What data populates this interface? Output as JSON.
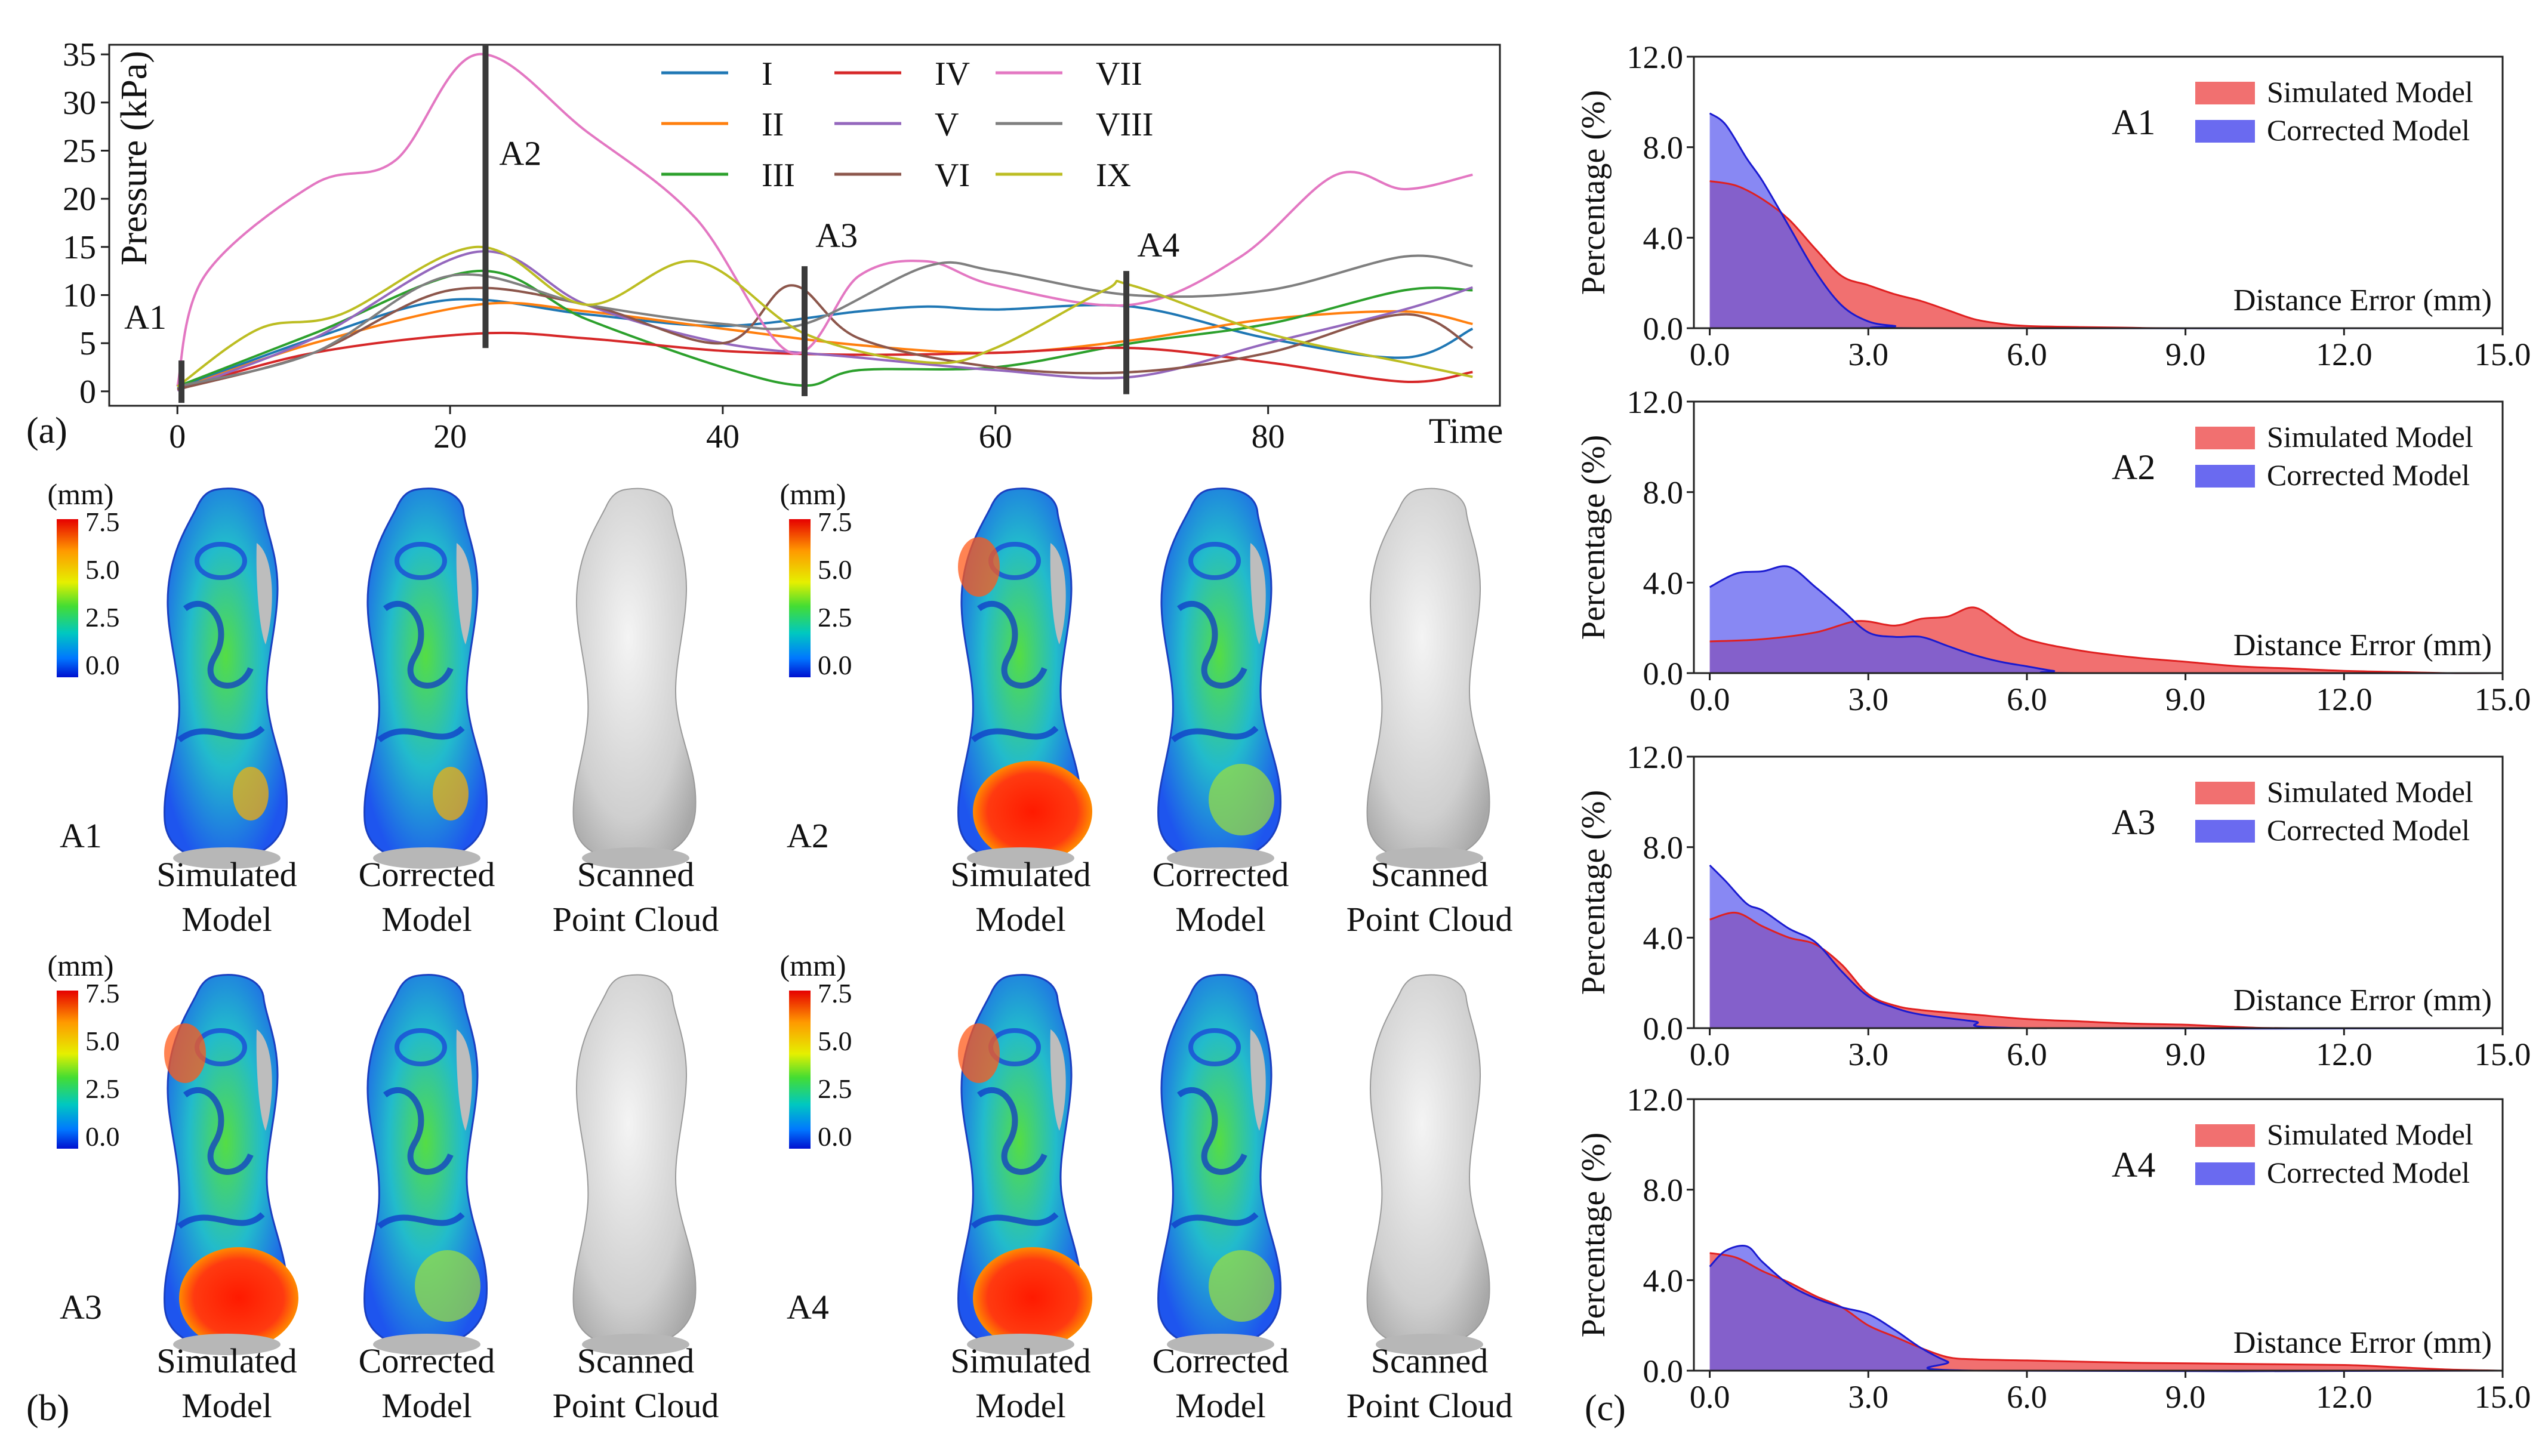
{
  "panel_labels": {
    "a": "(a)",
    "b": "(b)",
    "c": "(c)"
  },
  "panel_a": {
    "ylabel": "Pressure (kPa)",
    "xlabel": "Time",
    "xlim": [
      -5,
      97
    ],
    "ylim": [
      -1.5,
      36
    ],
    "xticks": [
      0,
      20,
      40,
      60,
      80
    ],
    "yticks": [
      0,
      5,
      10,
      15,
      20,
      25,
      30,
      35
    ],
    "markers": [
      {
        "name": "A1",
        "x": 0.3,
        "y0": -1.2,
        "y1": 3.2,
        "label_dx": -4.2,
        "label_y": 6.5
      },
      {
        "name": "A2",
        "x": 22.6,
        "y0": 4.5,
        "y1": 36,
        "label_dx": 1.0,
        "label_y": 23.5
      },
      {
        "name": "A3",
        "x": 46.0,
        "y0": -0.5,
        "y1": 13,
        "label_dx": 0.8,
        "label_y": 15.0
      },
      {
        "name": "A4",
        "x": 69.6,
        "y0": -0.3,
        "y1": 12.5,
        "label_dx": 0.8,
        "label_y": 14.0
      }
    ],
    "legend": [
      "I",
      "II",
      "III",
      "IV",
      "V",
      "VI",
      "VII",
      "VIII",
      "IX"
    ],
    "colors": [
      "#1f77b4",
      "#ff7f0e",
      "#2ca02c",
      "#d62728",
      "#9467bd",
      "#8c564b",
      "#e377c2",
      "#7f7f7f",
      "#bcbd22"
    ]
  },
  "chart_data": [
    {
      "type": "line",
      "title": "",
      "xlabel": "Time",
      "ylabel": "Pressure (kPa)",
      "xlim": [
        -5,
        97
      ],
      "ylim": [
        -1.5,
        36
      ],
      "grid": false,
      "legend_position": "top",
      "series": [
        {
          "name": "I",
          "x": [
            0,
            10,
            20,
            30,
            40,
            50,
            55,
            60,
            70,
            80,
            90,
            95
          ],
          "y": [
            0.3,
            5.5,
            9.5,
            8.0,
            6.8,
            8.3,
            8.8,
            8.5,
            8.8,
            5.5,
            3.5,
            6.5
          ]
        },
        {
          "name": "II",
          "x": [
            0,
            10,
            22,
            30,
            40,
            50,
            60,
            70,
            80,
            90,
            95
          ],
          "y": [
            0.2,
            5.0,
            9.0,
            8.3,
            6.5,
            4.8,
            4.0,
            5.3,
            7.5,
            8.3,
            7.0
          ]
        },
        {
          "name": "III",
          "x": [
            0,
            10,
            22,
            30,
            40,
            46,
            50,
            60,
            70,
            80,
            90,
            95
          ],
          "y": [
            0.5,
            6.0,
            12.5,
            7.5,
            2.5,
            0.6,
            2.2,
            2.5,
            5.0,
            7.0,
            10.5,
            10.5
          ]
        },
        {
          "name": "IV",
          "x": [
            0,
            10,
            22,
            30,
            40,
            50,
            60,
            70,
            80,
            90,
            95
          ],
          "y": [
            0.2,
            4.0,
            6.0,
            5.5,
            4.2,
            3.8,
            4.0,
            4.5,
            3.0,
            1.0,
            2.0
          ]
        },
        {
          "name": "V",
          "x": [
            0,
            10,
            22,
            30,
            40,
            50,
            60,
            70,
            80,
            90,
            95
          ],
          "y": [
            0.1,
            5.5,
            14.5,
            9.0,
            5.0,
            3.5,
            2.2,
            1.5,
            5.0,
            8.5,
            10.8
          ]
        },
        {
          "name": "VI",
          "x": [
            0,
            10,
            20,
            30,
            40,
            45,
            50,
            60,
            70,
            80,
            90,
            95
          ],
          "y": [
            0.2,
            4.0,
            10.5,
            9.0,
            5.0,
            11.0,
            5.5,
            2.5,
            2.0,
            4.0,
            8.0,
            4.5
          ]
        },
        {
          "name": "VII",
          "x": [
            0,
            2,
            10,
            16,
            22,
            30,
            38,
            45,
            50,
            55,
            60,
            70,
            78,
            85,
            90,
            95
          ],
          "y": [
            0.5,
            12.0,
            21.5,
            24.0,
            35.0,
            27.0,
            18.0,
            4.0,
            12.0,
            13.5,
            11.0,
            9.0,
            14.0,
            22.5,
            21.0,
            22.5
          ]
        },
        {
          "name": "VIII",
          "x": [
            0,
            10,
            20,
            30,
            40,
            46,
            55,
            60,
            70,
            80,
            90,
            95
          ],
          "y": [
            0.5,
            4.0,
            12.0,
            9.0,
            7.0,
            7.0,
            13.0,
            12.5,
            10.0,
            10.5,
            14.0,
            13.0
          ]
        },
        {
          "name": "IX",
          "x": [
            0,
            6,
            12,
            22,
            30,
            38,
            46,
            55,
            60,
            68,
            70,
            80,
            90,
            95
          ],
          "y": [
            0.5,
            6.5,
            8.0,
            15.0,
            9.0,
            13.5,
            6.0,
            3.0,
            4.5,
            10.5,
            11.0,
            6.0,
            3.0,
            1.5
          ]
        }
      ]
    },
    {
      "type": "area",
      "title": "A1",
      "xlabel": "Distance Error (mm)",
      "ylabel": "Percentage (%)",
      "xlim": [
        -0.3,
        15.0
      ],
      "ylim": [
        0,
        12
      ],
      "xticks": [
        0.0,
        3.0,
        6.0,
        9.0,
        12.0,
        15.0
      ],
      "yticks": [
        0.0,
        4.0,
        8.0,
        12.0
      ],
      "legend_position": "top-right",
      "series": [
        {
          "name": "Simulated Model",
          "x": [
            0,
            0.5,
            1.0,
            1.5,
            2.0,
            2.5,
            3.0,
            3.5,
            4.0,
            4.5,
            5.0,
            5.5,
            6.0,
            7.0,
            8.0,
            9.0,
            15.0
          ],
          "y": [
            6.5,
            6.3,
            5.7,
            4.8,
            3.5,
            2.3,
            1.9,
            1.5,
            1.2,
            0.8,
            0.4,
            0.2,
            0.1,
            0.05,
            0.02,
            0,
            0
          ]
        },
        {
          "name": "Corrected Model",
          "x": [
            0,
            0.3,
            0.7,
            1.0,
            1.5,
            2.0,
            2.5,
            3.0,
            3.5,
            4.0,
            15.0
          ],
          "y": [
            9.5,
            9.0,
            7.5,
            6.5,
            4.5,
            2.5,
            1.0,
            0.3,
            0.1,
            0,
            0
          ]
        }
      ]
    },
    {
      "type": "area",
      "title": "A2",
      "xlabel": "Distance Error (mm)",
      "ylabel": "Percentage (%)",
      "xlim": [
        -0.3,
        15.0
      ],
      "ylim": [
        0,
        12
      ],
      "xticks": [
        0.0,
        3.0,
        6.0,
        9.0,
        12.0,
        15.0
      ],
      "yticks": [
        0.0,
        4.0,
        8.0,
        12.0
      ],
      "legend_position": "top-right",
      "series": [
        {
          "name": "Simulated Model",
          "x": [
            0,
            1.0,
            2.0,
            2.8,
            3.5,
            4.0,
            4.5,
            5.0,
            5.5,
            6.0,
            7.0,
            8.0,
            9.0,
            10.0,
            11.0,
            12.0,
            13.0,
            14.0,
            15.0
          ],
          "y": [
            1.4,
            1.5,
            1.8,
            2.3,
            2.1,
            2.4,
            2.5,
            2.9,
            2.2,
            1.5,
            1.0,
            0.7,
            0.5,
            0.3,
            0.2,
            0.1,
            0.05,
            0,
            0
          ]
        },
        {
          "name": "Corrected Model",
          "x": [
            0,
            0.5,
            1.0,
            1.5,
            2.0,
            2.5,
            3.0,
            3.5,
            4.0,
            4.5,
            5.0,
            5.5,
            6.0,
            6.5,
            7.0,
            15.0
          ],
          "y": [
            3.8,
            4.4,
            4.5,
            4.7,
            3.8,
            2.8,
            1.8,
            1.6,
            1.6,
            1.2,
            0.8,
            0.5,
            0.3,
            0.1,
            0,
            0
          ]
        }
      ]
    },
    {
      "type": "area",
      "title": "A3",
      "xlabel": "Distance Error (mm)",
      "ylabel": "Percentage (%)",
      "xlim": [
        -0.3,
        15.0
      ],
      "ylim": [
        0,
        12
      ],
      "xticks": [
        0.0,
        3.0,
        6.0,
        9.0,
        12.0,
        15.0
      ],
      "yticks": [
        0.0,
        4.0,
        8.0,
        12.0
      ],
      "legend_position": "top-right",
      "series": [
        {
          "name": "Simulated Model",
          "x": [
            0,
            0.5,
            1.0,
            1.5,
            2.0,
            2.5,
            3.0,
            3.5,
            4.0,
            5.0,
            6.0,
            7.0,
            8.0,
            9.0,
            10.0,
            11.0,
            15.0
          ],
          "y": [
            4.8,
            5.1,
            4.5,
            4.0,
            3.7,
            2.8,
            1.5,
            1.0,
            0.8,
            0.6,
            0.4,
            0.3,
            0.2,
            0.15,
            0.05,
            0,
            0
          ]
        },
        {
          "name": "Corrected Model",
          "x": [
            0,
            0.3,
            0.7,
            1.0,
            1.5,
            2.0,
            2.5,
            3.0,
            3.5,
            4.0,
            5.0,
            6.0,
            15.0
          ],
          "y": [
            7.2,
            6.5,
            5.5,
            5.2,
            4.4,
            3.8,
            2.5,
            1.4,
            0.9,
            0.6,
            0.3,
            0,
            0
          ]
        }
      ]
    },
    {
      "type": "area",
      "title": "A4",
      "xlabel": "Distance Error (mm)",
      "ylabel": "Percentage (%)",
      "xlim": [
        -0.3,
        15.0
      ],
      "ylim": [
        0,
        12
      ],
      "xticks": [
        0.0,
        3.0,
        6.0,
        9.0,
        12.0,
        15.0
      ],
      "yticks": [
        0.0,
        4.0,
        8.0,
        12.0
      ],
      "legend_position": "top-right",
      "series": [
        {
          "name": "Simulated Model",
          "x": [
            0,
            0.5,
            1.0,
            1.5,
            2.0,
            2.5,
            3.0,
            3.5,
            4.0,
            4.5,
            5.0,
            6.0,
            8.0,
            10.0,
            12.0,
            13.0,
            14.0,
            15.0
          ],
          "y": [
            5.2,
            5.0,
            4.4,
            3.9,
            3.3,
            2.8,
            2.0,
            1.5,
            1.0,
            0.6,
            0.5,
            0.45,
            0.35,
            0.3,
            0.25,
            0.15,
            0.05,
            0
          ]
        },
        {
          "name": "Corrected Model",
          "x": [
            0,
            0.3,
            0.7,
            1.0,
            1.5,
            2.0,
            2.5,
            3.0,
            3.5,
            4.0,
            4.5,
            5.0,
            15.0
          ],
          "y": [
            4.6,
            5.3,
            5.5,
            4.8,
            3.8,
            3.2,
            2.8,
            2.5,
            1.8,
            1.0,
            0.4,
            0,
            0
          ]
        }
      ]
    }
  ],
  "panel_c": {
    "simulated_color": "#f06060",
    "corrected_color": "#5a5aee",
    "overlap_color": "#7a3fbf",
    "legend": [
      "Simulated Model",
      "Corrected Model"
    ]
  },
  "panel_b": {
    "colorbar": {
      "unit": "(mm)",
      "ticks": [
        "7.5",
        "5.0",
        "2.5",
        "0.0"
      ]
    },
    "group_labels": [
      "A1",
      "A2",
      "A3",
      "A4"
    ],
    "captions": [
      [
        "Simulated",
        "Model"
      ],
      [
        "Corrected",
        "Model"
      ],
      [
        "Scanned",
        "Point Cloud"
      ]
    ]
  }
}
